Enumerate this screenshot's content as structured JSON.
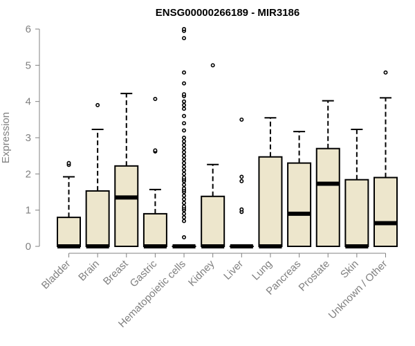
{
  "chart_data": {
    "type": "box",
    "title": "ENSG00000266189 - MIR3186",
    "xlabel": "",
    "ylabel": "Expression",
    "ylim": [
      0,
      6
    ],
    "yticks": [
      0,
      1,
      2,
      3,
      4,
      5,
      6
    ],
    "grid": false,
    "box_color": "#ede6cc",
    "categories": [
      "Bladder",
      "Brain",
      "Breast",
      "Gastric",
      "Hematopoietic cells",
      "Kidney",
      "Liver",
      "Lung",
      "Pancreas",
      "Prostate",
      "Skin",
      "Unknown / Other"
    ],
    "series": [
      {
        "name": "Bladder",
        "whisker_low": 0,
        "q1": 0,
        "median": 0,
        "q3": 0.8,
        "whisker_high": 1.92,
        "outliers": [
          2.25,
          2.3
        ]
      },
      {
        "name": "Brain",
        "whisker_low": 0,
        "q1": 0,
        "median": 0,
        "q3": 1.53,
        "whisker_high": 3.23,
        "outliers": [
          3.9
        ]
      },
      {
        "name": "Breast",
        "whisker_low": 0,
        "q1": 0,
        "median": 1.35,
        "q3": 2.22,
        "whisker_high": 4.22,
        "outliers": []
      },
      {
        "name": "Gastric",
        "whisker_low": 0,
        "q1": 0,
        "median": 0,
        "q3": 0.9,
        "whisker_high": 1.57,
        "outliers": [
          2.62,
          2.65,
          4.07
        ]
      },
      {
        "name": "Hematopoietic cells",
        "whisker_low": 0,
        "q1": 0,
        "median": 0,
        "q3": 0,
        "whisker_high": 0,
        "outliers": [
          0.25,
          0.7,
          0.8,
          0.9,
          1.0,
          1.05,
          1.1,
          1.2,
          1.3,
          1.4,
          1.5,
          1.55,
          1.6,
          1.7,
          1.8,
          1.85,
          1.9,
          2.0,
          2.1,
          2.2,
          2.3,
          2.4,
          2.5,
          2.6,
          2.7,
          2.8,
          2.9,
          3.0,
          3.2,
          3.4,
          3.6,
          3.8,
          3.9,
          4.0,
          4.15,
          4.2,
          4.5,
          4.8,
          5.75,
          5.95,
          6.0
        ]
      },
      {
        "name": "Kidney",
        "whisker_low": 0,
        "q1": 0,
        "median": 0,
        "q3": 1.38,
        "whisker_high": 2.26,
        "outliers": [
          5.0
        ]
      },
      {
        "name": "Liver",
        "whisker_low": 0,
        "q1": 0,
        "median": 0,
        "q3": 0,
        "whisker_high": 0,
        "outliers": [
          0.95,
          1.02,
          1.8,
          1.92,
          3.5
        ]
      },
      {
        "name": "Lung",
        "whisker_low": 0,
        "q1": 0,
        "median": 0,
        "q3": 2.47,
        "whisker_high": 3.55,
        "outliers": []
      },
      {
        "name": "Pancreas",
        "whisker_low": 0,
        "q1": 0,
        "median": 0.9,
        "q3": 2.3,
        "whisker_high": 3.17,
        "outliers": []
      },
      {
        "name": "Prostate",
        "whisker_low": 0,
        "q1": 0,
        "median": 1.73,
        "q3": 2.7,
        "whisker_high": 4.02,
        "outliers": []
      },
      {
        "name": "Skin",
        "whisker_low": 0,
        "q1": 0,
        "median": 0,
        "q3": 1.84,
        "whisker_high": 3.23,
        "outliers": []
      },
      {
        "name": "Unknown / Other",
        "whisker_low": 0,
        "q1": 0,
        "median": 0.64,
        "q3": 1.9,
        "whisker_high": 4.1,
        "outliers": [
          4.8
        ]
      }
    ]
  }
}
